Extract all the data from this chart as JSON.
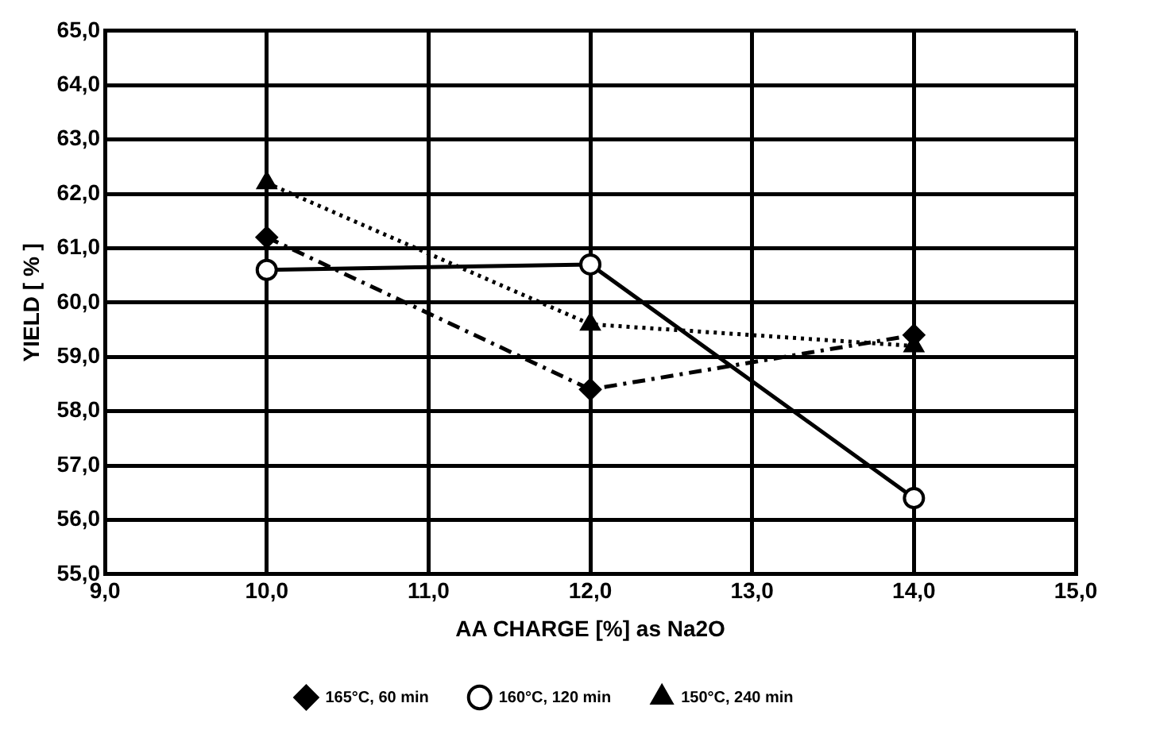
{
  "chart_data": {
    "type": "line",
    "xlabel": "AA CHARGE [%] as Na2O",
    "ylabel": "YIELD [ % ]",
    "x": [
      10,
      12,
      14
    ],
    "series": [
      {
        "name": "165°C, 60 min",
        "color": "#000000",
        "values": [
          61.2,
          58.4,
          59.4
        ],
        "marker": "diamond",
        "line_style": "dashed"
      },
      {
        "name": "160°C, 120 min",
        "color": "#000000",
        "values": [
          60.6,
          60.7,
          56.4
        ],
        "marker": "circle",
        "line_style": "solid"
      },
      {
        "name": "150°C, 240 min",
        "color": "#000000",
        "values": [
          62.2,
          59.6,
          59.2
        ],
        "marker": "triangle",
        "line_style": "dotted"
      }
    ],
    "xlim": [
      9,
      15
    ],
    "xticks": [
      {
        "value": 9,
        "label": "9,0"
      },
      {
        "value": 10,
        "label": "10,0"
      },
      {
        "value": 11,
        "label": "11,0"
      },
      {
        "value": 12,
        "label": "12,0"
      },
      {
        "value": 13,
        "label": "13,0"
      },
      {
        "value": 14,
        "label": "14,0"
      },
      {
        "value": 15,
        "label": "15,0"
      }
    ],
    "ylim": [
      55,
      65
    ],
    "yticks": [
      {
        "value": 55,
        "label": "55,0"
      },
      {
        "value": 56,
        "label": "56,0"
      },
      {
        "value": 57,
        "label": "57,0"
      },
      {
        "value": 58,
        "label": "58,0"
      },
      {
        "value": 59,
        "label": "59,0"
      },
      {
        "value": 60,
        "label": "60,0"
      },
      {
        "value": 61,
        "label": "61,0"
      },
      {
        "value": 62,
        "label": "62,0"
      },
      {
        "value": 63,
        "label": "63,0"
      },
      {
        "value": 64,
        "label": "64,0"
      },
      {
        "value": 65,
        "label": "65,0"
      }
    ],
    "grid": true,
    "legend": "bottom"
  }
}
